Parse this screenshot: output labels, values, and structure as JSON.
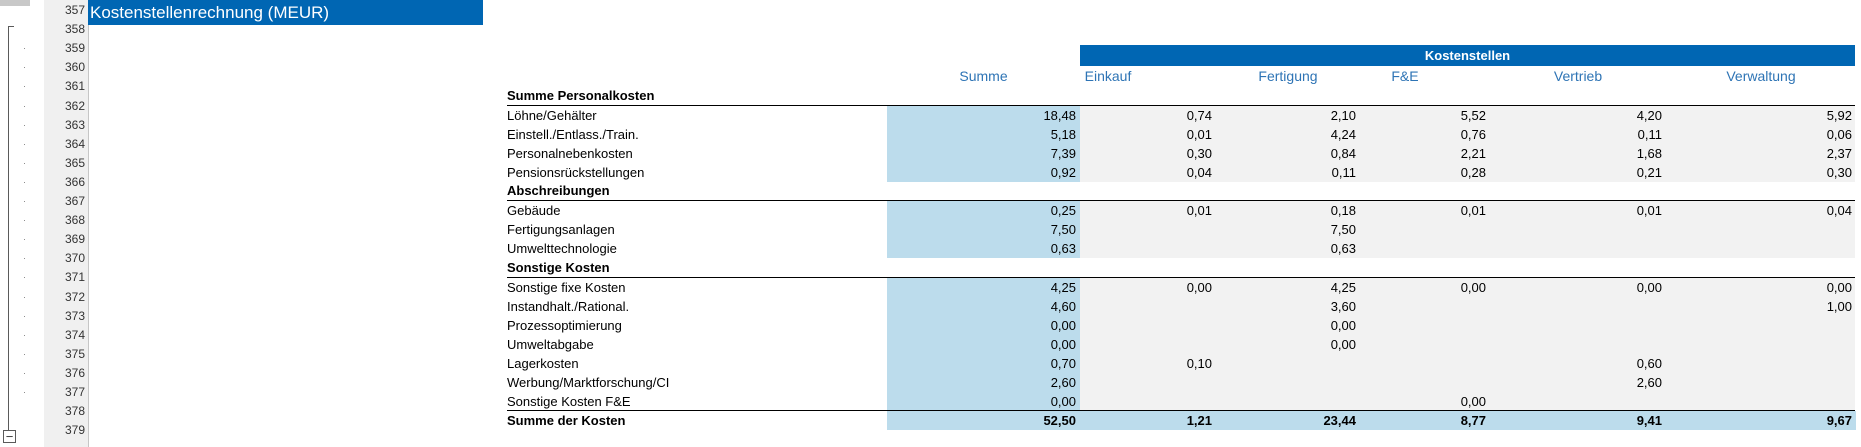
{
  "outline": {
    "collapse_symbol": "−"
  },
  "row_numbers": [
    "357",
    "358",
    "359",
    "360",
    "361",
    "362",
    "363",
    "364",
    "365",
    "366",
    "367",
    "368",
    "369",
    "370",
    "371",
    "372",
    "373",
    "374",
    "375",
    "376",
    "377",
    "378",
    "379"
  ],
  "title": "Kostenstellenrechnung (MEUR)",
  "kostenstellen_label": "Kostenstellen",
  "columns": {
    "summe": "Summe",
    "einkauf": "Einkauf",
    "fertigung": "Fertigung",
    "fe": "F&E",
    "vertrieb": "Vertrieb",
    "verwaltung": "Verwaltung"
  },
  "sections": [
    {
      "label": "Summe Personalkosten"
    },
    {
      "label": "Abschreibungen"
    },
    {
      "label": "Sonstige Kosten"
    }
  ],
  "rows": [
    {
      "label": "Löhne/Gehälter",
      "summe": "18,48",
      "c1": "0,74",
      "c2": "2,10",
      "c3": "5,52",
      "c4": "4,20",
      "c5": "5,92"
    },
    {
      "label": "Einstell./Entlass./Train.",
      "summe": "5,18",
      "c1": "0,01",
      "c2": "4,24",
      "c3": "0,76",
      "c4": "0,11",
      "c5": "0,06"
    },
    {
      "label": "Personalnebenkosten",
      "summe": "7,39",
      "c1": "0,30",
      "c2": "0,84",
      "c3": "2,21",
      "c4": "1,68",
      "c5": "2,37"
    },
    {
      "label": "Pensionsrückstellungen",
      "summe": "0,92",
      "c1": "0,04",
      "c2": "0,11",
      "c3": "0,28",
      "c4": "0,21",
      "c5": "0,30"
    },
    {
      "label": "Gebäude",
      "summe": "0,25",
      "c1": "0,01",
      "c2": "0,18",
      "c3": "0,01",
      "c4": "0,01",
      "c5": "0,04"
    },
    {
      "label": "Fertigungsanlagen",
      "summe": "7,50",
      "c1": "",
      "c2": "7,50",
      "c3": "",
      "c4": "",
      "c5": ""
    },
    {
      "label": "Umwelttechnologie",
      "summe": "0,63",
      "c1": "",
      "c2": "0,63",
      "c3": "",
      "c4": "",
      "c5": ""
    },
    {
      "label": "Sonstige fixe Kosten",
      "summe": "4,25",
      "c1": "0,00",
      "c2": "4,25",
      "c3": "0,00",
      "c4": "0,00",
      "c5": "0,00"
    },
    {
      "label": "Instandhalt./Rational.",
      "summe": "4,60",
      "c1": "",
      "c2": "3,60",
      "c3": "",
      "c4": "",
      "c5": "1,00"
    },
    {
      "label": "Prozessoptimierung",
      "summe": "0,00",
      "c1": "",
      "c2": "0,00",
      "c3": "",
      "c4": "",
      "c5": ""
    },
    {
      "label": "Umweltabgabe",
      "summe": "0,00",
      "c1": "",
      "c2": "0,00",
      "c3": "",
      "c4": "",
      "c5": ""
    },
    {
      "label": "Lagerkosten",
      "summe": "0,70",
      "c1": "0,10",
      "c2": "",
      "c3": "",
      "c4": "0,60",
      "c5": ""
    },
    {
      "label": "Werbung/Marktforschung/CI",
      "summe": "2,60",
      "c1": "",
      "c2": "",
      "c3": "",
      "c4": "2,60",
      "c5": ""
    },
    {
      "label": "Sonstige Kosten F&E",
      "summe": "0,00",
      "c1": "",
      "c2": "",
      "c3": "0,00",
      "c4": "",
      "c5": ""
    }
  ],
  "total": {
    "label": "Summe der Kosten",
    "summe": "52,50",
    "c1": "1,21",
    "c2": "23,44",
    "c3": "8,77",
    "c4": "9,41",
    "c5": "9,67"
  },
  "colors": {
    "banner": "#0066b3",
    "header_text": "#2e74b5",
    "summe_fill": "#bcdcec",
    "cell_fill": "#f2f2f2"
  }
}
